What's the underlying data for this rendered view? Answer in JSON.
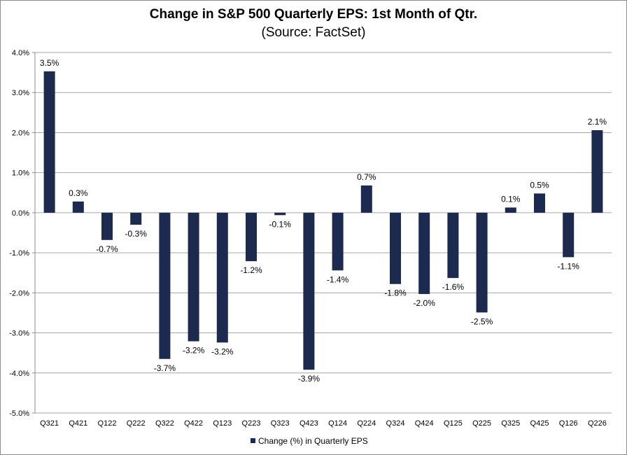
{
  "chart_data": {
    "type": "bar",
    "title": "Change in S&P 500 Quarterly EPS: 1st Month of Qtr.",
    "subtitle": "(Source: FactSet)",
    "categories": [
      "Q321",
      "Q421",
      "Q122",
      "Q222",
      "Q322",
      "Q422",
      "Q123",
      "Q223",
      "Q323",
      "Q423",
      "Q124",
      "Q224",
      "Q324",
      "Q424",
      "Q125",
      "Q225",
      "Q325",
      "Q425",
      "Q126",
      "Q226"
    ],
    "series": [
      {
        "name": "Change (%) in Quarterly EPS",
        "values": [
          3.53,
          0.28,
          -0.68,
          -0.3,
          -3.65,
          -3.21,
          -3.24,
          -1.21,
          -0.06,
          -3.92,
          -1.44,
          0.68,
          -1.78,
          -2.03,
          -1.63,
          -2.49,
          0.13,
          0.48,
          -1.11,
          2.06
        ],
        "labels": [
          "3.5%",
          "0.3%",
          "-0.7%",
          "-0.3%",
          "-3.7%",
          "-3.2%",
          "-3.2%",
          "-1.2%",
          "-0.1%",
          "-3.9%",
          "-1.4%",
          "0.7%",
          "-1.8%",
          "-2.0%",
          "-1.6%",
          "-2.5%",
          "0.1%",
          "0.5%",
          "-1.1%",
          "2.1%"
        ],
        "color": "#1b2a4e"
      }
    ],
    "yticks": [
      4,
      3,
      2,
      1,
      0,
      -1,
      -2,
      -3,
      -4,
      -5
    ],
    "ytick_labels": [
      "4.0%",
      "3.0%",
      "2.0%",
      "1.0%",
      "0.0%",
      "-1.0%",
      "-2.0%",
      "-3.0%",
      "-4.0%",
      "-5.0%"
    ],
    "ylim": [
      -5,
      4
    ],
    "grid": true,
    "legend": "bottom",
    "xlabel": "",
    "ylabel": ""
  }
}
